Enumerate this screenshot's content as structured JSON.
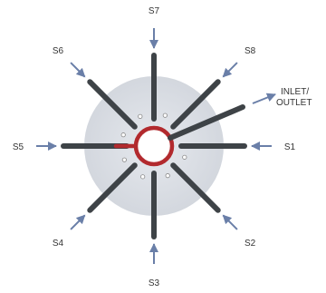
{
  "header": "",
  "center_label_line1": "INLET/",
  "center_label_line2": "OUTLET",
  "stations": [
    {
      "id": "S1",
      "label": "S1",
      "angle_deg": 0
    },
    {
      "id": "S2",
      "label": "S2",
      "angle_deg": 45
    },
    {
      "id": "S3",
      "label": "S3",
      "angle_deg": 90
    },
    {
      "id": "S4",
      "label": "S4",
      "angle_deg": 135
    },
    {
      "id": "S5",
      "label": "S5",
      "angle_deg": 180
    },
    {
      "id": "S6",
      "label": "S6",
      "angle_deg": 225
    },
    {
      "id": "S7",
      "label": "S7",
      "angle_deg": 270
    },
    {
      "id": "S8",
      "label": "S8",
      "angle_deg": 315
    }
  ],
  "colors": {
    "disc": "#d9dde4",
    "bar": "#3e4347",
    "ring": "#b22a2e",
    "arrow": "#6a7fa8",
    "text": "#333333"
  }
}
